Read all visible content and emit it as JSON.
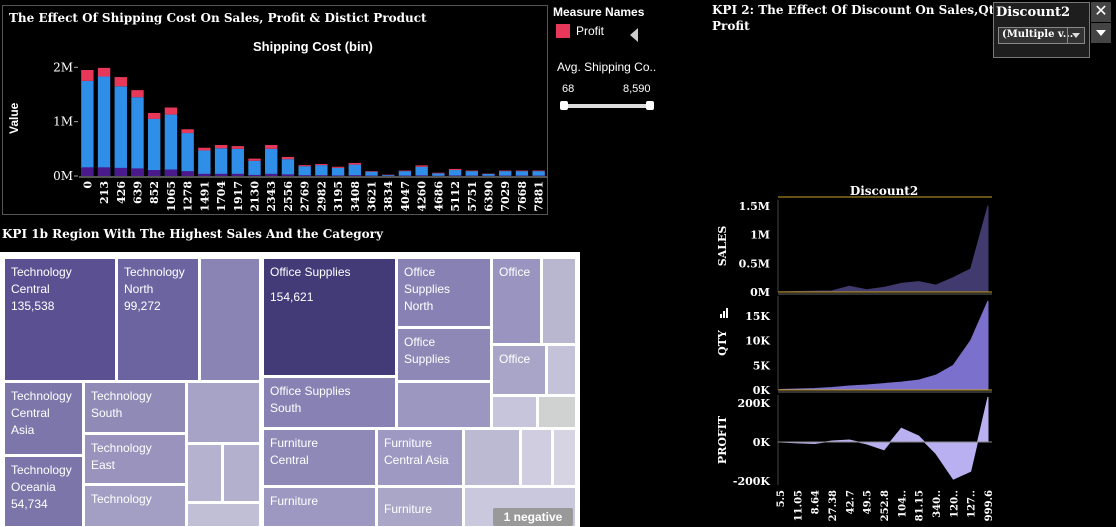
{
  "kpi1": {
    "title": "The Effect Of Shipping Cost On Sales, Profit & Distict Product",
    "chart_title": "Shipping Cost (bin)",
    "y_label": "Value",
    "y_ticks": [
      "2M",
      "1M",
      "0M"
    ]
  },
  "legend": {
    "header": "Measure Names",
    "items": [
      {
        "label": "Profit",
        "color": "#e8385a"
      }
    ]
  },
  "shipping_filter": {
    "label": "Avg. Shipping Co..",
    "min": "68",
    "max": "8,590"
  },
  "kpi1b": {
    "title": "KPI 1b Region With The Highest Sales And the Category",
    "badge": "1 negative",
    "tiles": [
      {
        "l1": "Technology",
        "l2": "Central",
        "l3": "135,538"
      },
      {
        "l1": "Technology",
        "l2": "North",
        "l3": "99,272"
      },
      {
        "l1": "Office Supplies",
        "l2": "154,621"
      },
      {
        "l1": "Office",
        "l2": "Supplies",
        "l3": "North"
      },
      {
        "l1": "Office"
      },
      {
        "l1": "Office",
        "l2": "Supplies"
      },
      {
        "l1": "Office"
      },
      {
        "l1": "Technology",
        "l2": "Central",
        "l3": "Asia"
      },
      {
        "l1": "Technology",
        "l2": "South"
      },
      {
        "l1": "Office Supplies",
        "l2": "South"
      },
      {
        "l1": "Technology",
        "l2": "East"
      },
      {
        "l1": "Technology",
        "l2": "Oceania",
        "l3": "54,734"
      },
      {
        "l1": "Technology"
      },
      {
        "l1": "Furniture",
        "l2": "Central"
      },
      {
        "l1": "Furniture",
        "l2": "Central Asia"
      },
      {
        "l1": "Furniture"
      },
      {
        "l1": "Furniture"
      }
    ]
  },
  "kpi2": {
    "title_line1": "KPI 2: The Effect Of Discount On Sales,Qty &",
    "title_line2": "Profit",
    "chart_title": "Discount2",
    "panel_labels": [
      "SALES",
      "QTY",
      "PROFIT"
    ],
    "sales_ticks": [
      "1.5M",
      "1M",
      "0.5M",
      "0M"
    ],
    "qty_ticks": [
      "15K",
      "10K",
      "5K",
      "0K"
    ],
    "profit_ticks": [
      "200K",
      "0K",
      "-200K"
    ]
  },
  "discount_filter": {
    "title": "Discount2",
    "value": "(Multiple v..."
  },
  "colors": {
    "sales_bar": "#2f8fe8",
    "profit_bar": "#e8385a",
    "distinct_bar": "#4a1a8c",
    "area_sales": "#413a6e",
    "area_qty": "#7b70cc",
    "area_profit": "#b8b0f0"
  },
  "chart_data": [
    {
      "type": "bar",
      "title": "Shipping Cost (bin)",
      "ylabel": "Value",
      "ylim": [
        0,
        2300000
      ],
      "categories": [
        "0",
        "213",
        "426",
        "639",
        "852",
        "1065",
        "1278",
        "1491",
        "1704",
        "1917",
        "2130",
        "2343",
        "2556",
        "2769",
        "2982",
        "3195",
        "3408",
        "3621",
        "3834",
        "4047",
        "4260",
        "4686",
        "5112",
        "5751",
        "6390",
        "7029",
        "7668",
        "7881"
      ],
      "series": [
        {
          "name": "Sales",
          "values": [
            1750000,
            1830000,
            1650000,
            1450000,
            1050000,
            1130000,
            790000,
            470000,
            510000,
            500000,
            280000,
            500000,
            310000,
            180000,
            200000,
            150000,
            210000,
            80000,
            20000,
            90000,
            170000,
            50000,
            110000,
            90000,
            40000,
            90000,
            90000,
            90000
          ]
        },
        {
          "name": "Profit",
          "values": [
            200000,
            160000,
            170000,
            130000,
            110000,
            130000,
            70000,
            50000,
            60000,
            50000,
            40000,
            70000,
            40000,
            20000,
            20000,
            20000,
            30000,
            10000,
            5000,
            10000,
            25000,
            10000,
            20000,
            10000,
            5000,
            10000,
            10000,
            10000
          ]
        },
        {
          "name": "Distinct Product",
          "values": [
            160000,
            160000,
            150000,
            140000,
            110000,
            120000,
            90000,
            40000,
            40000,
            40000,
            20000,
            40000,
            30000,
            15000,
            15000,
            10000,
            15000,
            8000,
            5000,
            8000,
            12000,
            5000,
            10000,
            8000,
            5000,
            8000,
            8000,
            8000
          ]
        }
      ]
    },
    {
      "type": "area",
      "title": "Discount2",
      "x": [
        "5.5",
        "11.05",
        "8.64",
        "27.38",
        "42.7",
        "49.5",
        "252.8",
        "104..",
        "81.15",
        "340..",
        "120..",
        "127..",
        "999.6"
      ],
      "series": [
        {
          "name": "SALES",
          "values": [
            5000,
            8000,
            15000,
            20000,
            100000,
            40000,
            80000,
            150000,
            180000,
            120000,
            250000,
            400000,
            1500000
          ]
        },
        {
          "name": "QTY",
          "values": [
            100,
            200,
            300,
            500,
            800,
            1000,
            1300,
            1600,
            2000,
            3000,
            5000,
            10000,
            18000
          ]
        },
        {
          "name": "PROFIT",
          "values": [
            0,
            -5000,
            -8000,
            5000,
            10000,
            -10000,
            -40000,
            70000,
            30000,
            -60000,
            -190000,
            -150000,
            230000
          ]
        }
      ]
    }
  ]
}
